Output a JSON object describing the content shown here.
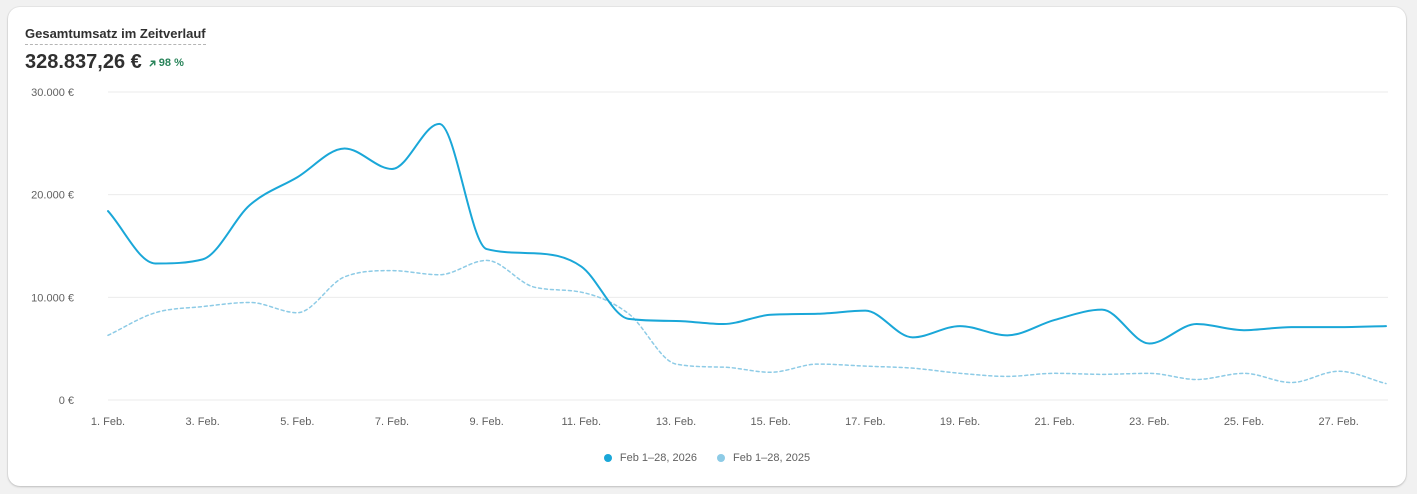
{
  "card": {
    "title": "Gesamtumsatz im Zeitverlauf",
    "total": "328.837,26 €",
    "change": "98 %",
    "change_icon": "arrow-up-right-icon"
  },
  "colors": {
    "current": "#1aa7d8",
    "previous": "#8dcbe6",
    "grid": "#ebebeb",
    "positive": "#29845a"
  },
  "chart_data": {
    "type": "line",
    "title": "Gesamtumsatz im Zeitverlauf",
    "xlabel": "",
    "ylabel": "",
    "x": [
      "1. Feb.",
      "2. Feb.",
      "3. Feb.",
      "4. Feb.",
      "5. Feb.",
      "6. Feb.",
      "7. Feb.",
      "8. Feb.",
      "9. Feb.",
      "10. Feb.",
      "11. Feb.",
      "12. Feb.",
      "13. Feb.",
      "14. Feb.",
      "15. Feb.",
      "16. Feb.",
      "17. Feb.",
      "18. Feb.",
      "19. Feb.",
      "20. Feb.",
      "21. Feb.",
      "22. Feb.",
      "23. Feb.",
      "24. Feb.",
      "25. Feb.",
      "26. Feb.",
      "27. Feb.",
      "28. Feb."
    ],
    "x_tick_labels": [
      "1. Feb.",
      "3. Feb.",
      "5. Feb.",
      "7. Feb.",
      "9. Feb.",
      "11. Feb.",
      "13. Feb.",
      "15. Feb.",
      "17. Feb.",
      "19. Feb.",
      "21. Feb.",
      "23. Feb.",
      "25. Feb.",
      "27. Feb."
    ],
    "y_ticks": [
      0,
      10000,
      20000,
      30000
    ],
    "y_tick_labels": [
      "0 €",
      "10.000 €",
      "20.000 €",
      "30.000 €"
    ],
    "ylim": [
      0,
      30000
    ],
    "grid": true,
    "legend_position": "bottom-center",
    "series": [
      {
        "name": "Feb 1–28, 2026",
        "style": "solid",
        "values": [
          18400,
          13300,
          13700,
          19000,
          21700,
          24500,
          22500,
          26900,
          14700,
          14300,
          13000,
          7900,
          7700,
          7400,
          8300,
          8400,
          8700,
          6100,
          7200,
          6300,
          7800,
          8800,
          5500,
          7400,
          6800,
          7100,
          7100,
          7200
        ]
      },
      {
        "name": "Feb 1–28, 2025",
        "style": "dashed",
        "values": [
          6300,
          8500,
          9100,
          9500,
          8500,
          12000,
          12600,
          12200,
          13600,
          11000,
          10500,
          8400,
          3500,
          3200,
          2700,
          3500,
          3300,
          3100,
          2600,
          2300,
          2600,
          2500,
          2600,
          2000,
          2600,
          1700,
          2800,
          1600
        ]
      }
    ]
  }
}
